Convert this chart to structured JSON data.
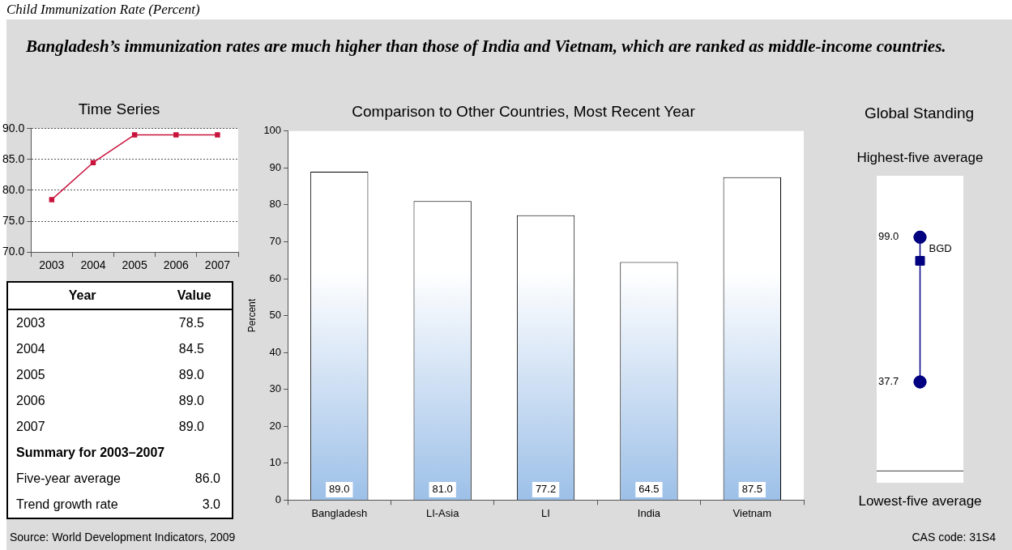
{
  "chart_data": [
    {
      "type": "other",
      "title": "Child Immunization Rate (Percent)",
      "subtitle": "Bangladesh’s immunization rates are much higher than those of India and Vietnam, which are ranked as middle-income countries.",
      "annotations": [
        "Source: World Development Indicators, 2009",
        "CAS code: 31S4"
      ]
    },
    {
      "type": "line",
      "title": "Time Series",
      "categories": [
        "2003",
        "2004",
        "2005",
        "2006",
        "2007"
      ],
      "values": [
        78.5,
        84.5,
        89.0,
        89.0,
        89.0
      ],
      "color": "#c8143c",
      "marker": "square",
      "ylim": [
        70,
        90
      ],
      "yticks": [
        {
          "value": 70,
          "label": "70.0"
        },
        {
          "value": 75,
          "label": "75.0"
        },
        {
          "value": 80,
          "label": "80.0"
        },
        {
          "value": 85,
          "label": "85.0"
        },
        {
          "value": 90,
          "label": "90.0"
        }
      ],
      "grid": "y",
      "annotations": [
        "Year",
        "Value",
        "78.5",
        "84.5",
        "89.0",
        "89.0",
        "89.0",
        "Summary for 2003–2007",
        "Five-year average",
        "86.0",
        "Trend growth rate",
        "3.0"
      ]
    },
    {
      "type": "bar",
      "title": "Comparison to Other Countries, Most Recent Year",
      "ylabel": "Percent",
      "categories": [
        "Bangladesh",
        "LI-Asia",
        "LI",
        "India",
        "Vietnam"
      ],
      "values": [
        89.0,
        81.0,
        77.2,
        64.5,
        87.5
      ],
      "value_labels": [
        "89.0",
        "81.0",
        "77.2",
        "64.5",
        "87.5"
      ],
      "color": "#9dc0e8",
      "ylim": [
        0,
        100
      ],
      "yticks": [
        0,
        10,
        20,
        30,
        40,
        50,
        60,
        70,
        80,
        90,
        100
      ]
    },
    {
      "type": "scatter",
      "title": "Global Standing",
      "categories": [
        null
      ],
      "ylim": [
        -5,
        125
      ],
      "yticks": [
        {
          "value": 37.7,
          "label": "37.7"
        },
        {
          "value": 99.0,
          "label": "99.0"
        }
      ],
      "annotations": [
        "Highest-five average",
        "Lowest-five average"
      ],
      "ref_lines": [
        {
          "axis": "y",
          "value": 0,
          "color": "#404040"
        }
      ],
      "series": [
        {
          "values": [
            99.0
          ],
          "color": "#000080",
          "marker": "circle"
        },
        {
          "values": [
            37.7
          ],
          "color": "#000080",
          "marker": "circle"
        },
        {
          "name": "BGD",
          "values": [
            89.0
          ],
          "color": "#000080",
          "marker": "square"
        }
      ]
    }
  ]
}
